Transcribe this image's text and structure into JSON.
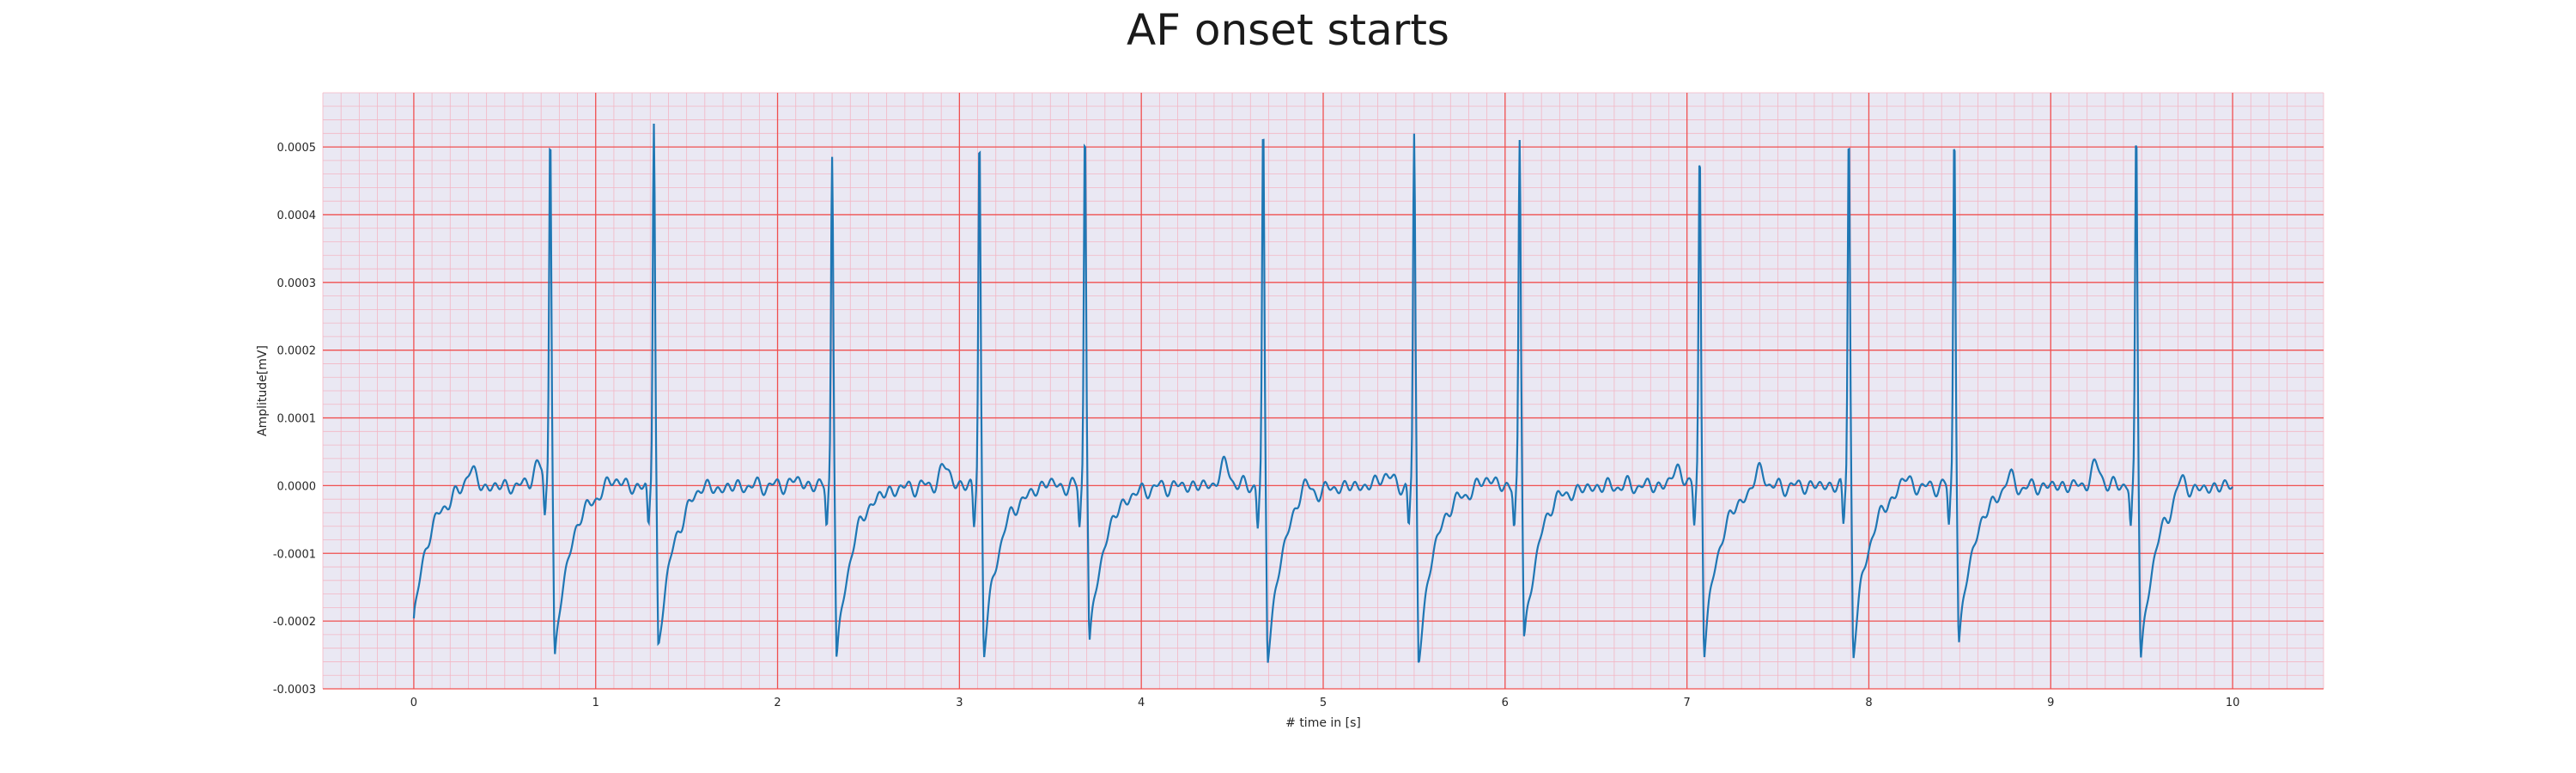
{
  "chart_data": {
    "type": "line",
    "title": "AF onset starts",
    "xlabel": "# time in [s]",
    "ylabel": "Amplitude[mV]",
    "xlim": [
      -0.5,
      10.5
    ],
    "ylim": [
      -0.0003,
      0.00058
    ],
    "x_ticks": [
      0,
      1,
      2,
      3,
      4,
      5,
      6,
      7,
      8,
      9,
      10
    ],
    "y_ticks": [
      -0.0003,
      -0.0002,
      -0.0001,
      0.0,
      0.0001,
      0.0002,
      0.0003,
      0.0004,
      0.0005
    ],
    "x_tick_labels": [
      "0",
      "1",
      "2",
      "3",
      "4",
      "5",
      "6",
      "7",
      "8",
      "9",
      "10"
    ],
    "y_tick_labels": [
      "-0.0003",
      "-0.0002",
      "-0.0001",
      "0.0000",
      "0.0001",
      "0.0002",
      "0.0003",
      "0.0004",
      "0.0005"
    ],
    "grid": true,
    "minor_grid": true,
    "series": [
      {
        "color": "#1f77b4",
        "beats": [
          {
            "t": 0.75,
            "peak": 0.000535,
            "trough": -0.000258
          },
          {
            "t": 1.32,
            "peak": 0.000535,
            "trough": -0.00024
          },
          {
            "t": 2.3,
            "peak": 0.000495,
            "trough": -0.00026
          },
          {
            "t": 3.11,
            "peak": 0.00052,
            "trough": -0.00025
          },
          {
            "t": 3.69,
            "peak": 0.00054,
            "trough": -0.000235
          },
          {
            "t": 4.67,
            "peak": 0.00053,
            "trough": -0.000258
          },
          {
            "t": 5.5,
            "peak": 0.000512,
            "trough": -0.00026
          },
          {
            "t": 6.08,
            "peak": 0.000512,
            "trough": -0.00023
          },
          {
            "t": 7.07,
            "peak": 0.0005,
            "trough": -0.000245
          },
          {
            "t": 7.89,
            "peak": 0.000526,
            "trough": -0.000248
          },
          {
            "t": 8.47,
            "peak": 0.000533,
            "trough": -0.000233
          },
          {
            "t": 9.47,
            "peak": 0.00053,
            "trough": -0.000258
          }
        ],
        "x_start": 0.0,
        "x_end": 10.0,
        "y_start": -0.000196,
        "baseline_ripple": [
          {
            "t": 0.31,
            "v": 3e-05
          },
          {
            "t": 0.68,
            "v": 3e-05
          },
          {
            "t": 1.1,
            "v": 1.8e-05
          },
          {
            "t": 1.58,
            "v": 1.5e-05
          },
          {
            "t": 2.1,
            "v": 8e-06
          },
          {
            "t": 2.92,
            "v": 2.8e-05
          },
          {
            "t": 3.48,
            "v": 1e-05
          },
          {
            "t": 4.46,
            "v": 3e-05
          },
          {
            "t": 4.89,
            "v": 2.5e-05
          },
          {
            "t": 5.34,
            "v": 1.8e-05
          },
          {
            "t": 5.9,
            "v": 1.6e-05
          },
          {
            "t": 6.27,
            "v": 1.2e-05
          },
          {
            "t": 6.95,
            "v": 2.5e-05
          },
          {
            "t": 7.4,
            "v": 3e-05
          },
          {
            "t": 8.2,
            "v": 2e-05
          },
          {
            "t": 8.77,
            "v": 2e-05
          },
          {
            "t": 9.25,
            "v": 2.8e-05
          },
          {
            "t": 9.72,
            "v": 2.5e-05
          }
        ]
      }
    ]
  }
}
